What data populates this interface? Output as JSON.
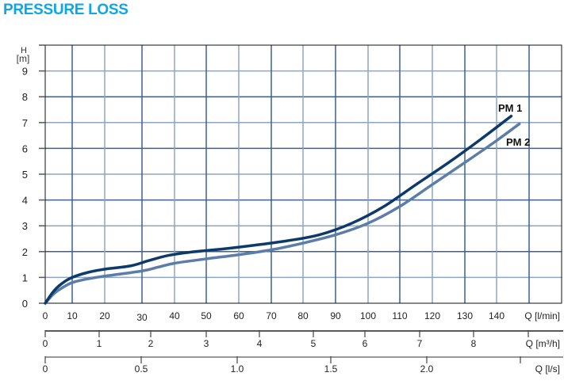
{
  "title": "PRESSURE LOSS",
  "colors": {
    "title": "#0ca7e6",
    "pm1": "#0d3a6b",
    "pm2": "#5b7da8",
    "grid_dark": "#3f6192",
    "grid_light": "#8ea6c2"
  },
  "chart_data": {
    "type": "line",
    "title": "PRESSURE LOSS",
    "ylabel": "H\n[m]",
    "ylabel_lines": [
      "H",
      "[m]"
    ],
    "xlabel": "Q [l/min]",
    "ylim": [
      0,
      10
    ],
    "xlim": [
      0,
      160
    ],
    "grid": true,
    "y_ticks": [
      0,
      1,
      2,
      3,
      4,
      5,
      6,
      7,
      8,
      9
    ],
    "x_ticks": [
      0,
      10,
      20,
      30,
      40,
      50,
      60,
      70,
      80,
      90,
      100,
      110,
      120,
      130,
      140
    ],
    "secondary_axes": [
      {
        "label": "Q [m³/h]",
        "ticks": [
          "0",
          "1",
          "2",
          "3",
          "4",
          "5",
          "6",
          "7",
          "8"
        ]
      },
      {
        "label": "Q [l/s]",
        "ticks": [
          "0",
          "0.5",
          "1.0",
          "1.5",
          "2.0"
        ]
      }
    ],
    "series": [
      {
        "name": "PM 1",
        "x": [
          0,
          3,
          6,
          10,
          15,
          20,
          27,
          32,
          38,
          45,
          55,
          65,
          75,
          85,
          95,
          105,
          115,
          125,
          135,
          144.5
        ],
        "y": [
          0,
          0.45,
          0.75,
          1.0,
          1.2,
          1.32,
          1.45,
          1.65,
          1.85,
          1.98,
          2.1,
          2.25,
          2.42,
          2.65,
          3.1,
          3.75,
          4.6,
          5.45,
          6.35,
          7.25
        ]
      },
      {
        "name": "PM 2",
        "x": [
          0,
          3,
          6,
          10,
          15,
          20,
          30,
          35,
          40,
          50,
          60,
          70,
          80,
          90,
          100,
          110,
          120,
          130,
          140,
          147
        ],
        "y": [
          0,
          0.35,
          0.58,
          0.8,
          0.95,
          1.05,
          1.25,
          1.4,
          1.55,
          1.72,
          1.88,
          2.07,
          2.33,
          2.65,
          3.1,
          3.75,
          4.6,
          5.45,
          6.3,
          6.95
        ]
      }
    ]
  }
}
